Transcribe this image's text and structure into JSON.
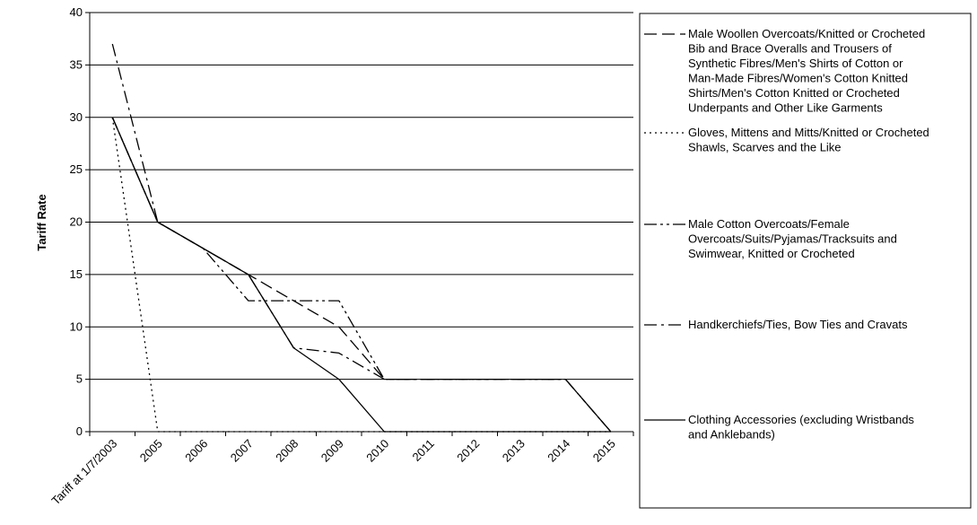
{
  "chart_data": {
    "type": "line",
    "title": "",
    "xlabel": "",
    "ylabel": "Tariff Rate",
    "ylim": [
      0,
      40
    ],
    "y_ticks": [
      "0",
      "5",
      "10",
      "15",
      "20",
      "25",
      "30",
      "35",
      "40"
    ],
    "categories": [
      "Tariff at 1/7/2003",
      "2005",
      "2006",
      "2007",
      "2008",
      "2009",
      "2010",
      "2011",
      "2012",
      "2013",
      "2014",
      "2015"
    ],
    "grid": true,
    "legend_position": "right",
    "series": [
      {
        "name": "Male Woollen Overcoats/Knitted or Crocheted Bib and Brace Overalls and Trousers of Synthetic Fibres/Men's Shirts of Cotton or Man-Made Fibres/Women's Cotton Knitted Shirts/Men's Cotton Knitted or Crocheted Underpants and Other Like Garments",
        "style": "long-dash",
        "legend_lines": [
          "Male Woollen Overcoats/Knitted or Crocheted",
          "Bib and Brace Overalls and Trousers of",
          "Synthetic Fibres/Men's Shirts of Cotton or",
          "Man-Made Fibres/Women's Cotton Knitted",
          "Shirts/Men's Cotton Knitted or Crocheted",
          "Underpants and Other Like Garments"
        ],
        "values": [
          30,
          20,
          17.5,
          15,
          12.5,
          10,
          5,
          5,
          5,
          5,
          5,
          0
        ]
      },
      {
        "name": "Gloves, Mittens and Mitts/Knitted or Crocheted Shawls, Scarves and the Like",
        "style": "dotted",
        "legend_lines": [
          "Gloves, Mittens and Mitts/Knitted or Crocheted",
          "Shawls, Scarves and the Like"
        ],
        "values": [
          30,
          0,
          0,
          0,
          0,
          0,
          0,
          0,
          0,
          0,
          0,
          0
        ]
      },
      {
        "name": "Male Cotton Overcoats/Female Overcoats/Suits/Pyjamas/Tracksuits and Swimwear, Knitted or Crocheted",
        "style": "dash-dot-dot",
        "legend_lines": [
          "Male Cotton Overcoats/Female",
          "Overcoats/Suits/Pyjamas/Tracksuits and",
          "Swimwear, Knitted or Crocheted"
        ],
        "values": [
          30,
          20,
          17.5,
          12.5,
          12.5,
          12.5,
          5,
          5,
          5,
          5,
          5,
          0
        ]
      },
      {
        "name": "Handkerchiefs/Ties, Bow Ties and Cravats",
        "style": "dash-dot",
        "legend_lines": [
          "Handkerchiefs/Ties, Bow Ties and Cravats"
        ],
        "values": [
          37,
          20,
          17.5,
          15,
          8,
          7.5,
          5,
          5,
          5,
          5,
          5,
          0
        ]
      },
      {
        "name": "Clothing Accessories (excluding Wristbands and Anklebands)",
        "style": "solid",
        "legend_lines": [
          "Clothing Accessories (excluding Wristbands",
          "and Anklebands)"
        ],
        "values": [
          30,
          20,
          17.5,
          15,
          8,
          5,
          0,
          0,
          0,
          0,
          0,
          0
        ]
      }
    ]
  }
}
